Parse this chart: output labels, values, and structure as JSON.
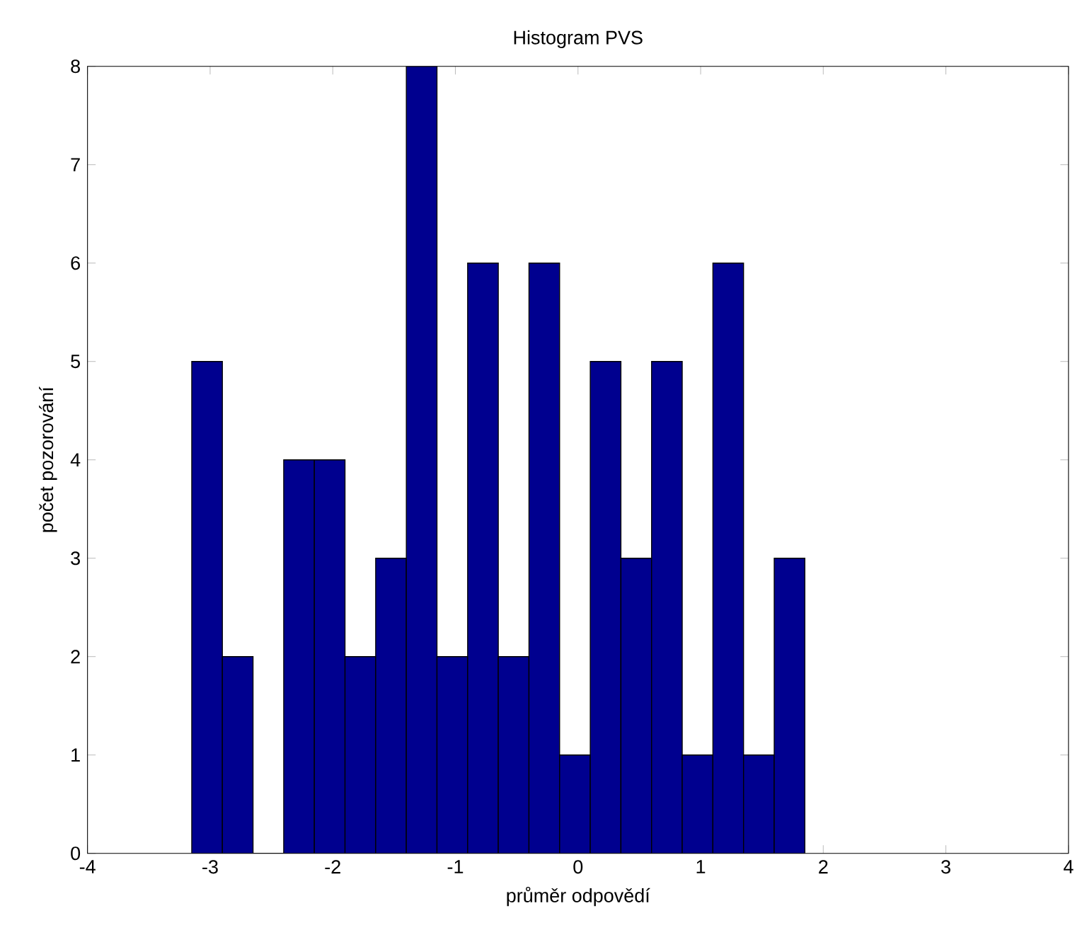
{
  "chart_data": {
    "type": "histogram",
    "title": "Histogram PVS",
    "xlabel": "průměr odpovědí",
    "ylabel": "počet pozorování",
    "bins": [
      -3.15,
      -2.9,
      -2.65,
      -2.4,
      -2.15,
      -1.9,
      -1.65,
      -1.4,
      -1.15,
      -0.9,
      -0.65,
      -0.4,
      -0.15,
      0.1,
      0.35,
      0.6,
      0.85,
      1.1,
      1.35,
      1.6,
      1.85
    ],
    "values": [
      5,
      2,
      0,
      4,
      4,
      2,
      3,
      8,
      2,
      6,
      2,
      6,
      1,
      5,
      3,
      5,
      1,
      6,
      1,
      3
    ],
    "color": "#00008f",
    "xlim": [
      -4,
      4
    ],
    "xticks": [
      -4,
      -3,
      -2,
      -1,
      0,
      1,
      2,
      3,
      4
    ],
    "ylim": [
      0,
      8
    ],
    "yticks": [
      0,
      1,
      2,
      3,
      4,
      5,
      6,
      7,
      8
    ],
    "grid": false
  }
}
